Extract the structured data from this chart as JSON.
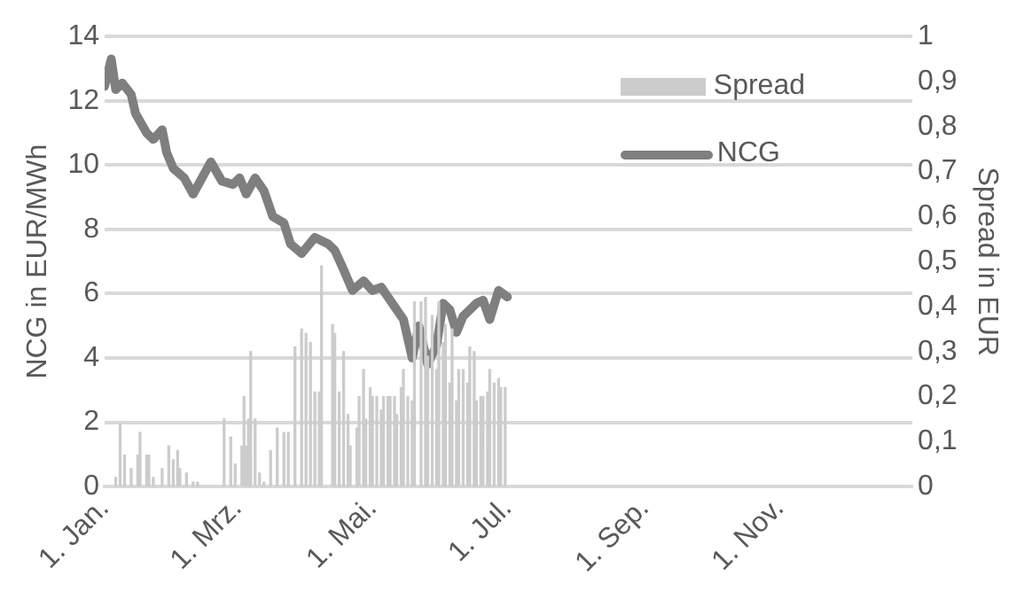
{
  "chart_data": {
    "type": "line",
    "ylabel": "NCG in EUR/MWh",
    "y2label": "Spread in EUR",
    "xlim": [
      "--01-01",
      "--12-31"
    ],
    "xticks": [
      {
        "value": "--01-01",
        "label": "1. Jan."
      },
      {
        "value": "--03-01",
        "label": "1. Mrz."
      },
      {
        "value": "--05-01",
        "label": "1. Mai."
      },
      {
        "value": "--07-01",
        "label": "1. Jul."
      },
      {
        "value": "--09-01",
        "label": "1. Sep."
      },
      {
        "value": "--11-01",
        "label": "1. Nov."
      }
    ],
    "ylim": [
      0,
      14
    ],
    "yticks": [
      0,
      2,
      4,
      6,
      8,
      10,
      12,
      14
    ],
    "y2lim": [
      0,
      1
    ],
    "y2ticks": [
      0,
      {
        "value": 0.1,
        "label": "0,1"
      },
      {
        "value": 0.2,
        "label": "0,2"
      },
      {
        "value": 0.3,
        "label": "0,3"
      },
      {
        "value": 0.4,
        "label": "0,4"
      },
      {
        "value": 0.5,
        "label": "0,5"
      },
      {
        "value": 0.6,
        "label": "0,6"
      },
      {
        "value": 0.7,
        "label": "0,7"
      },
      {
        "value": 0.8,
        "label": "0,8"
      },
      {
        "value": 0.9,
        "label": "0,9"
      },
      1
    ],
    "grid": "y",
    "legend": "top right",
    "series": [
      {
        "name": "Spread",
        "type": "bar",
        "axis": "y2",
        "color": "#cccccc",
        "x": [
          "--01-06",
          "--01-08",
          "--01-10",
          "--01-13",
          "--01-16",
          "--01-17",
          "--01-20",
          "--01-21",
          "--01-23",
          "--01-27",
          "--01-30",
          "--02-01",
          "--02-03",
          "--02-04",
          "--02-07",
          "--02-10",
          "--02-12",
          "--02-24",
          "--02-27",
          "--02-29",
          "--03-03",
          "--03-04",
          "--03-05",
          "--03-06",
          "--03-07",
          "--03-09",
          "--03-11",
          "--03-13",
          "--03-16",
          "--03-19",
          "--03-22",
          "--03-24",
          "--03-27",
          "--03-30",
          "--04-01",
          "--04-03",
          "--04-05",
          "--04-07",
          "--04-08",
          "--04-13",
          "--04-14",
          "--04-16",
          "--04-18",
          "--04-20",
          "--04-21",
          "--04-24",
          "--04-25",
          "--04-27",
          "--04-28",
          "--04-30",
          "--05-01",
          "--05-03",
          "--05-05",
          "--05-06",
          "--05-08",
          "--05-09",
          "--05-11",
          "--05-12",
          "--05-14",
          "--05-15",
          "--05-17",
          "--05-19",
          "--05-20",
          "--05-23",
          "--05-25",
          "--05-26",
          "--05-28",
          "--05-30",
          "--05-31",
          "--06-02",
          "--06-03",
          "--06-05",
          "--06-06",
          "--06-08",
          "--06-09",
          "--06-11",
          "--06-13",
          "--06-14",
          "--06-16",
          "--06-17",
          "--06-19",
          "--06-20",
          "--06-22",
          "--06-23",
          "--06-25",
          "--06-27",
          "--06-28",
          "--06-30"
        ],
        "values": [
          0.02,
          0.14,
          0.07,
          0.04,
          0.07,
          0.12,
          0.07,
          0.07,
          0.02,
          0.04,
          0.09,
          0.06,
          0.08,
          0.04,
          0.03,
          0.01,
          0.01,
          0.15,
          0.11,
          0.05,
          0.09,
          0.2,
          0.09,
          0.15,
          0.3,
          0.15,
          0.03,
          0.01,
          0.08,
          0.13,
          0.12,
          0.12,
          0.31,
          0.35,
          0.34,
          0.32,
          0.21,
          0.21,
          0.49,
          0.36,
          0.34,
          0.21,
          0.3,
          0.16,
          0.09,
          0.13,
          0.2,
          0.26,
          0.15,
          0.22,
          0.2,
          0.2,
          0.17,
          0.2,
          0.2,
          0.2,
          0.2,
          0.16,
          0.22,
          0.26,
          0.2,
          0.19,
          0.41,
          0.41,
          0.42,
          0.29,
          0.38,
          0.26,
          0.41,
          0.32,
          0.36,
          0.23,
          0.35,
          0.19,
          0.26,
          0.26,
          0.23,
          0.31,
          0.3,
          0.19,
          0.2,
          0.2,
          0.21,
          0.26,
          0.23,
          0.24,
          0.22,
          0.22
        ]
      },
      {
        "name": "NCG",
        "color": "#7f7f7f",
        "x": [
          "--01-01",
          "--01-04",
          "--01-06",
          "--01-09",
          "--01-13",
          "--01-15",
          "--01-20",
          "--01-23",
          "--01-27",
          "--01-29",
          "--02-01",
          "--02-06",
          "--02-10",
          "--02-18",
          "--02-23",
          "--02-28",
          "--03-02",
          "--03-05",
          "--03-09",
          "--03-13",
          "--03-17",
          "--03-22",
          "--03-25",
          "--03-30",
          "--04-05",
          "--04-11",
          "--04-14",
          "--04-17",
          "--04-22",
          "--04-27",
          "--05-01",
          "--05-05",
          "--05-08",
          "--05-12",
          "--05-15",
          "--05-19",
          "--05-22",
          "--05-23",
          "--05-26",
          "--05-30",
          "--06-02",
          "--06-05",
          "--06-08",
          "--06-11",
          "--06-14",
          "--06-17",
          "--06-20",
          "--06-23",
          "--06-27",
          "--07-01"
        ],
        "values": [
          12.45,
          13.3,
          12.35,
          12.55,
          12.2,
          11.6,
          11.0,
          10.8,
          11.1,
          10.4,
          9.9,
          9.6,
          9.1,
          10.1,
          9.5,
          9.4,
          9.6,
          9.1,
          9.6,
          9.2,
          8.4,
          8.2,
          7.55,
          7.25,
          7.75,
          7.55,
          7.35,
          6.9,
          6.1,
          6.4,
          6.1,
          6.2,
          5.9,
          5.5,
          5.2,
          4.0,
          5.0,
          4.7,
          3.8,
          4.4,
          5.7,
          5.5,
          4.8,
          5.3,
          5.5,
          5.7,
          5.8,
          5.2,
          6.1,
          5.9
        ]
      }
    ]
  }
}
